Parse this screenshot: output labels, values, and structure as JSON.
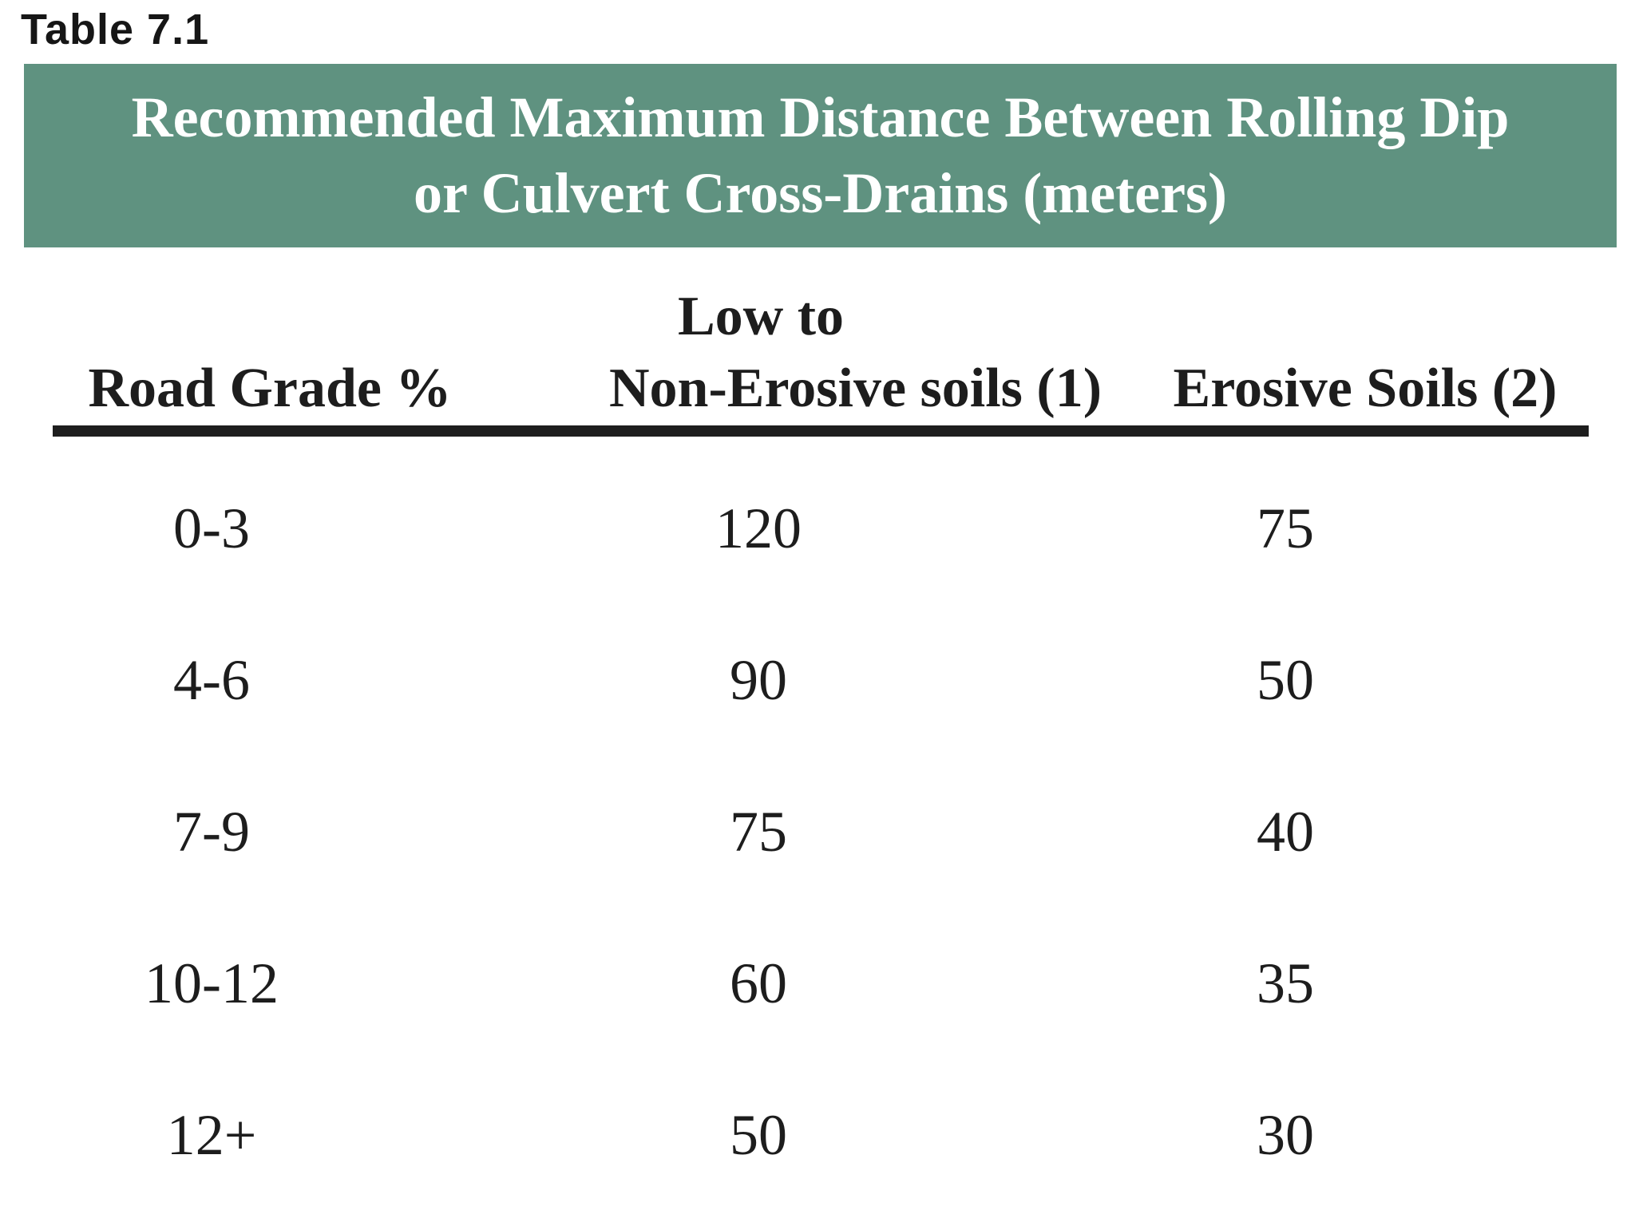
{
  "colors": {
    "banner_bg": "#5f9280",
    "banner_text": "#ffffff",
    "body_text": "#1d1d1d",
    "rule": "#1e1e1e"
  },
  "table_label": "Table 7.1",
  "banner": {
    "title_full": "Recommended Maximum Distance Between Rolling Dip or Culvert Cross-Drains (meters)",
    "title_lines": [
      "Recommended Maximum Distance Between Rolling Dip",
      "or Culvert Cross-Drains (meters)"
    ]
  },
  "table": {
    "header": {
      "col1": "Road Grade %",
      "col2_top": "Low to",
      "col2": "Non-Erosive soils (1)",
      "col3": "Erosive Soils (2)"
    },
    "rows": [
      {
        "grade": "0-3",
        "non_erosive": "120",
        "erosive": "75"
      },
      {
        "grade": "4-6",
        "non_erosive": "90",
        "erosive": "50"
      },
      {
        "grade": "7-9",
        "non_erosive": "75",
        "erosive": "40"
      },
      {
        "grade": "10-12",
        "non_erosive": "60",
        "erosive": "35"
      },
      {
        "grade": "12+",
        "non_erosive": "50",
        "erosive": "30"
      }
    ]
  },
  "chart_data": {
    "type": "table",
    "title": "Recommended Maximum Distance Between Rolling Dip or Culvert Cross-Drains (meters)",
    "columns": [
      "Road Grade %",
      "Low to Non-Erosive soils (1)",
      "Erosive Soils (2)"
    ],
    "rows": [
      [
        "0-3",
        120,
        75
      ],
      [
        "4-6",
        90,
        50
      ],
      [
        "7-9",
        75,
        40
      ],
      [
        "10-12",
        60,
        35
      ],
      [
        "12+",
        50,
        30
      ]
    ]
  }
}
